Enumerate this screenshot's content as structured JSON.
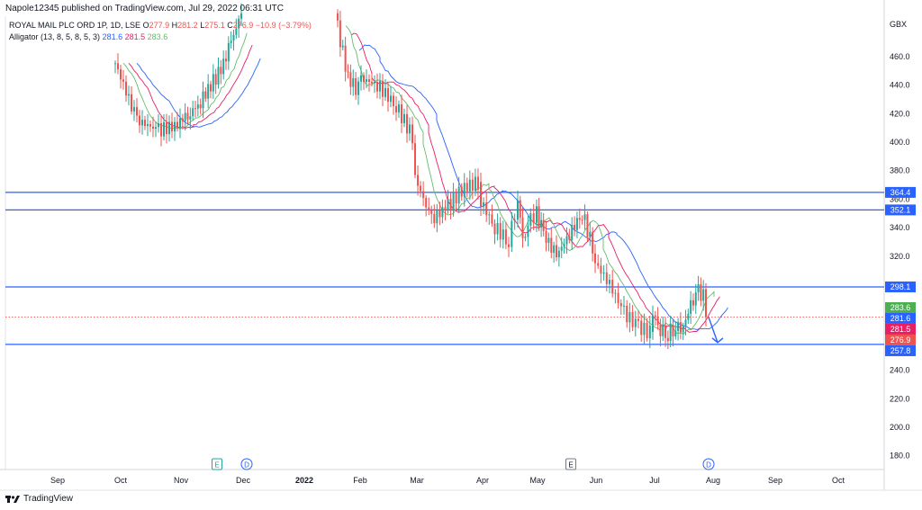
{
  "header": {
    "published": "Napole12345 published on TradingView.com, Jul 29, 2022 06:31 UTC"
  },
  "footer": {
    "brand": "TradingView"
  },
  "colors": {
    "price_line": "#2962ff",
    "up": "#26a69a",
    "down": "#ef5350",
    "jaw": "#2962ff",
    "teeth": "#e91e63",
    "lips": "#66bb6a",
    "arrow": "#2962ff"
  },
  "chart_data": {
    "type": "candlestick",
    "symbol": "ROYAL MAIL PLC ORD 1P, 1D, LSE",
    "ohlc": {
      "o_label": "O",
      "open": "277.9",
      "h_label": "H",
      "high": "281.2",
      "l_label": "L",
      "low": "275.1",
      "c_label": "C",
      "close": "276.9",
      "change": "−10.9 (−3.79%)"
    },
    "indicator": {
      "name": "Alligator (13, 8, 5, 8, 5, 3)",
      "jaw": "281.6",
      "teeth": "281.5",
      "lips": "283.6"
    },
    "currency": "GBX",
    "ylim": [
      170,
      488
    ],
    "yticks": [
      "180.0",
      "200.0",
      "220.0",
      "240.0",
      "260.0",
      "280.0",
      "300.0",
      "320.0",
      "340.0",
      "360.0",
      "380.0",
      "400.0",
      "420.0",
      "440.0",
      "460.0"
    ],
    "xticks": [
      "Sep",
      "Oct",
      "Nov",
      "Dec",
      "2022",
      "Feb",
      "Mar",
      "Apr",
      "May",
      "Jun",
      "Jul",
      "Aug",
      "Sep",
      "Oct"
    ],
    "xtick_bold": "2022",
    "horizontal_lines": [
      364.4,
      352.1,
      298.1,
      257.8
    ],
    "price_labels": [
      {
        "value": "364.4",
        "color": "#2962ff",
        "level": 364.4
      },
      {
        "value": "352.1",
        "color": "#2962ff",
        "level": 352.1
      },
      {
        "value": "298.1",
        "color": "#2962ff",
        "level": 298.1
      },
      {
        "value": "283.6",
        "color": "#4caf50",
        "level": 283.6
      },
      {
        "value": "281.6",
        "color": "#2962ff",
        "level": 281.6
      },
      {
        "value": "281.5",
        "color": "#e91e63",
        "level": 281.5
      },
      {
        "value": "276.9",
        "color": "#ef5350",
        "level": 276.9
      },
      {
        "value": "257.8",
        "color": "#2962ff",
        "level": 257.8
      }
    ],
    "current_price": 276.9,
    "events": [
      {
        "label": "E",
        "month": "Nov",
        "kind": "earnings-green"
      },
      {
        "label": "D",
        "month": "Dec",
        "kind": "dividend"
      },
      {
        "label": "E",
        "month": "May",
        "kind": "earnings-gray"
      },
      {
        "label": "D",
        "month": "Jul",
        "kind": "dividend"
      }
    ],
    "close_path": [
      [
        "Oct",
        455
      ],
      [
        "Oct",
        415
      ],
      [
        "Oct",
        408
      ],
      [
        "Oct",
        412
      ],
      [
        "Nov",
        415
      ],
      [
        "Nov",
        420
      ],
      [
        "Nov",
        428
      ],
      [
        "Nov",
        440
      ],
      [
        "Nov",
        450
      ],
      [
        "Nov",
        470
      ],
      [
        "Nov",
        490
      ],
      [
        "Jan",
        480
      ],
      [
        "Jan",
        445
      ],
      [
        "Jan",
        435
      ],
      [
        "Feb",
        445
      ],
      [
        "Feb",
        440
      ],
      [
        "Feb",
        425
      ],
      [
        "Feb",
        400
      ],
      [
        "Mar",
        375
      ],
      [
        "Mar",
        345
      ],
      [
        "Mar",
        355
      ],
      [
        "Mar",
        368
      ],
      [
        "Mar",
        372
      ],
      [
        "Apr",
        358
      ],
      [
        "Apr",
        340
      ],
      [
        "Apr",
        330
      ],
      [
        "Apr",
        330
      ],
      [
        "Apr",
        350
      ],
      [
        "May",
        360
      ],
      [
        "May",
        345
      ],
      [
        "May",
        335
      ],
      [
        "May",
        320
      ],
      [
        "May",
        335
      ],
      [
        "May",
        350
      ],
      [
        "May",
        320
      ],
      [
        "Jun",
        315
      ],
      [
        "Jun",
        300
      ],
      [
        "Jun",
        280
      ],
      [
        "Jun",
        270
      ],
      [
        "Jun",
        265
      ],
      [
        "Jul",
        280
      ],
      [
        "Jul",
        268
      ],
      [
        "Jul",
        265
      ],
      [
        "Jul",
        270
      ],
      [
        "Jul",
        270
      ],
      [
        "Jul",
        285
      ],
      [
        "Jul",
        295
      ],
      [
        "Jul",
        290
      ],
      [
        "Aug",
        277
      ]
    ]
  }
}
